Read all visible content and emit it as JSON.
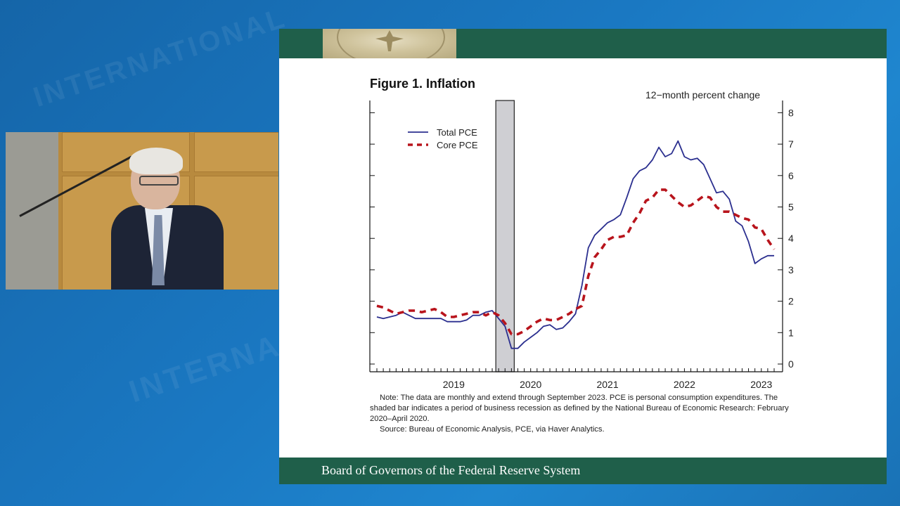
{
  "slide": {
    "footer": "Board of Governors of the Federal Reserve System"
  },
  "chart_data": {
    "type": "line",
    "title": "Figure 1. Inflation",
    "units_label": "12−month percent change",
    "x_tick_labels": [
      "2019",
      "2020",
      "2021",
      "2022",
      "2023"
    ],
    "y_ticks": [
      0,
      1,
      2,
      3,
      4,
      5,
      6,
      7,
      8
    ],
    "ylim": [
      0,
      8.3
    ],
    "y_axis_side": "right",
    "legend_placement": "top-left",
    "grid": false,
    "recession_shading": {
      "start": "2020-02",
      "end": "2020-04",
      "color": "#cfcfd3"
    },
    "x": [
      "2018-07",
      "2018-08",
      "2018-09",
      "2018-10",
      "2018-11",
      "2018-12",
      "2019-01",
      "2019-02",
      "2019-03",
      "2019-04",
      "2019-05",
      "2019-06",
      "2019-07",
      "2019-08",
      "2019-09",
      "2019-10",
      "2019-11",
      "2019-12",
      "2020-01",
      "2020-02",
      "2020-03",
      "2020-04",
      "2020-05",
      "2020-06",
      "2020-07",
      "2020-08",
      "2020-09",
      "2020-10",
      "2020-11",
      "2020-12",
      "2021-01",
      "2021-02",
      "2021-03",
      "2021-04",
      "2021-05",
      "2021-06",
      "2021-07",
      "2021-08",
      "2021-09",
      "2021-10",
      "2021-11",
      "2021-12",
      "2022-01",
      "2022-02",
      "2022-03",
      "2022-04",
      "2022-05",
      "2022-06",
      "2022-07",
      "2022-08",
      "2022-09",
      "2022-10",
      "2022-11",
      "2022-12",
      "2023-01",
      "2023-02",
      "2023-03",
      "2023-04",
      "2023-05",
      "2023-06",
      "2023-07",
      "2023-08",
      "2023-09"
    ],
    "series": [
      {
        "name": "Total PCE",
        "color": "#2b2f8f",
        "style": "solid",
        "values": [
          1.5,
          1.45,
          1.5,
          1.55,
          1.65,
          1.55,
          1.45,
          1.45,
          1.45,
          1.45,
          1.45,
          1.35,
          1.35,
          1.35,
          1.4,
          1.55,
          1.55,
          1.65,
          1.7,
          1.45,
          1.2,
          0.5,
          0.5,
          0.7,
          0.85,
          1.0,
          1.2,
          1.25,
          1.1,
          1.15,
          1.35,
          1.6,
          2.5,
          3.7,
          4.1,
          4.3,
          4.5,
          4.6,
          4.75,
          5.3,
          5.9,
          6.15,
          6.25,
          6.5,
          6.9,
          6.6,
          6.7,
          7.1,
          6.6,
          6.5,
          6.55,
          6.35,
          5.9,
          5.45,
          5.5,
          5.25,
          4.55,
          4.4,
          3.9,
          3.2,
          3.35,
          3.45,
          3.45
        ]
      },
      {
        "name": "Core PCE",
        "color": "#b8141c",
        "style": "dashed",
        "values": [
          1.85,
          1.8,
          1.7,
          1.6,
          1.65,
          1.7,
          1.7,
          1.65,
          1.7,
          1.75,
          1.65,
          1.5,
          1.5,
          1.55,
          1.6,
          1.65,
          1.65,
          1.55,
          1.65,
          1.55,
          1.3,
          0.95,
          0.95,
          1.05,
          1.2,
          1.35,
          1.45,
          1.4,
          1.4,
          1.5,
          1.6,
          1.75,
          1.85,
          2.8,
          3.4,
          3.65,
          3.95,
          4.05,
          4.05,
          4.1,
          4.5,
          4.8,
          5.2,
          5.3,
          5.55,
          5.55,
          5.35,
          5.15,
          5.0,
          5.05,
          5.2,
          5.35,
          5.3,
          5.0,
          4.85,
          4.85,
          4.75,
          4.65,
          4.6,
          4.35,
          4.3,
          3.95,
          3.65
        ]
      }
    ]
  },
  "notes": {
    "note": "Note: The data are monthly and extend through September 2023. PCE is personal consumption expenditures. The shaded bar indicates a period of business recession as defined by the National Bureau of Economic Research: February 2020–April 2020.",
    "source": "Source: Bureau of Economic Analysis, PCE, via Haver Analytics."
  }
}
